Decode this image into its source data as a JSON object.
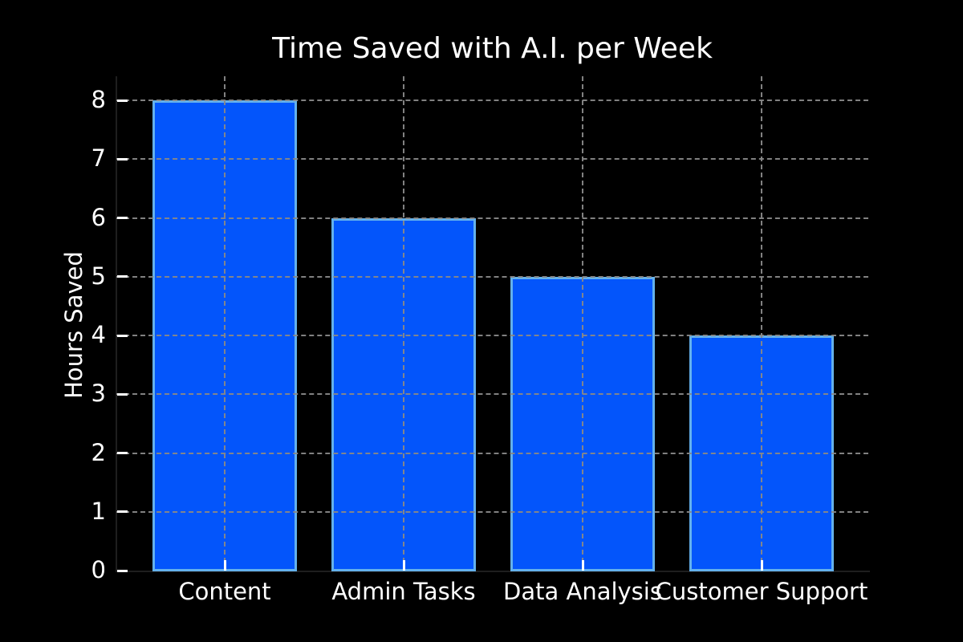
{
  "chart_data": {
    "type": "bar",
    "title": "Time Saved with A.I. per Week",
    "ylabel": "Hours Saved",
    "xlabel": "",
    "categories": [
      "Content",
      "Admin Tasks",
      "Data Analysis",
      "Customer Support"
    ],
    "values": [
      8,
      6,
      5,
      4
    ],
    "ylim": [
      0,
      8
    ],
    "yticks": [
      0,
      1,
      2,
      3,
      4,
      5,
      6,
      7,
      8
    ],
    "grid": "on",
    "grid_style": "dashed",
    "legend": "none",
    "colors": {
      "background": "#000000",
      "bar_fill": "#0355fb",
      "bar_edge": "#64b1ec",
      "grid": "#888888",
      "text": "#ffffff",
      "spine": "#1e1e1e"
    }
  }
}
